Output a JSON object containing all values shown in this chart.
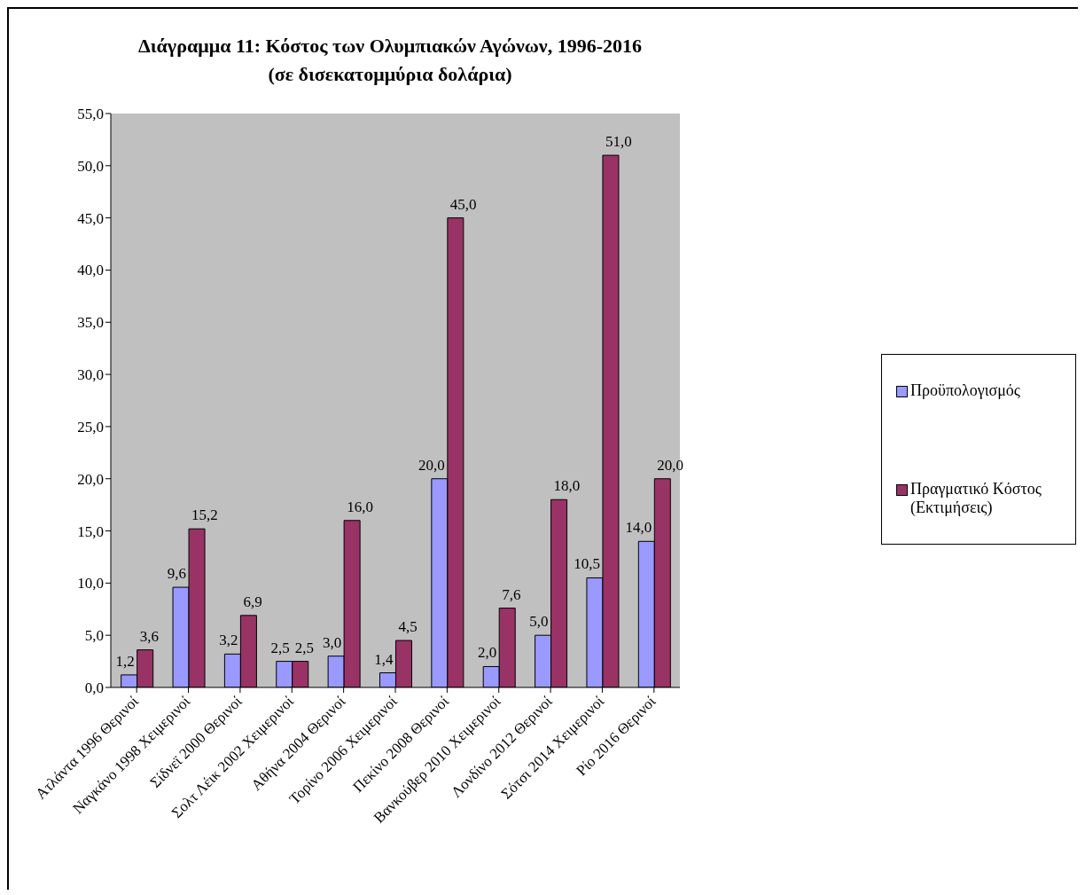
{
  "chart_data": {
    "type": "bar",
    "title": "Διάγραμμα 11:  Κόστος των Ολυμπιακών Αγώνων, 1996-2016",
    "subtitle": "(σε δισεκατομμύρια δολάρια)",
    "categories": [
      "Ατλάντα 1996 Θερινοί",
      "Ναγκάνο 1998 Χειμερινοί",
      "Σίδνεϊ 2000 Θερινοί",
      "Σολτ Λέικ 2002 Χειμερινοί",
      "Αθήνα 2004 Θερινοί",
      "Τορίνο 2006 Χειμερινοί",
      "Πεκίνο 2008 Θερινοί",
      "Βανκούβερ 2010 Χειμερινοί",
      "Λονδίνο 2012 Θερινοί",
      "Σότσι 2014 Χειμερινοί",
      "Ρίο 2016 Θερινοί"
    ],
    "series": [
      {
        "name": "Προϋπολογισμός",
        "color": "#9999ff",
        "values": [
          1.2,
          9.6,
          3.2,
          2.5,
          3.0,
          1.4,
          20.0,
          2.0,
          5.0,
          10.5,
          14.0
        ],
        "value_labels": [
          "1,2",
          "9,6",
          "3,2",
          "2,5",
          "3,0",
          "1,4",
          "20,0",
          "2,0",
          "5,0",
          "10,5",
          "14,0"
        ]
      },
      {
        "name": "Πραγματικό Κόστος (Εκτιμήσεις)",
        "color": "#993366",
        "values": [
          3.6,
          15.2,
          6.9,
          2.5,
          16.0,
          4.5,
          45.0,
          7.6,
          18.0,
          51.0,
          20.0
        ],
        "value_labels": [
          "3,6",
          "15,2",
          "6,9",
          "2,5",
          "16,0",
          "4,5",
          "45,0",
          "7,6",
          "18,0",
          "51,0",
          "20,0"
        ]
      }
    ],
    "ylim": [
      0,
      55
    ],
    "yticks": [
      {
        "value": 0,
        "label": "0,0"
      },
      {
        "value": 5,
        "label": "5,0"
      },
      {
        "value": 10,
        "label": "10,0"
      },
      {
        "value": 15,
        "label": "15,0"
      },
      {
        "value": 20,
        "label": "20,0"
      },
      {
        "value": 25,
        "label": "25,0"
      },
      {
        "value": 30,
        "label": "30,0"
      },
      {
        "value": 35,
        "label": "35,0"
      },
      {
        "value": 40,
        "label": "40,0"
      },
      {
        "value": 45,
        "label": "45,0"
      },
      {
        "value": 50,
        "label": "50,0"
      },
      {
        "value": 55,
        "label": "55,0"
      }
    ],
    "grid": false,
    "legend": "right"
  }
}
